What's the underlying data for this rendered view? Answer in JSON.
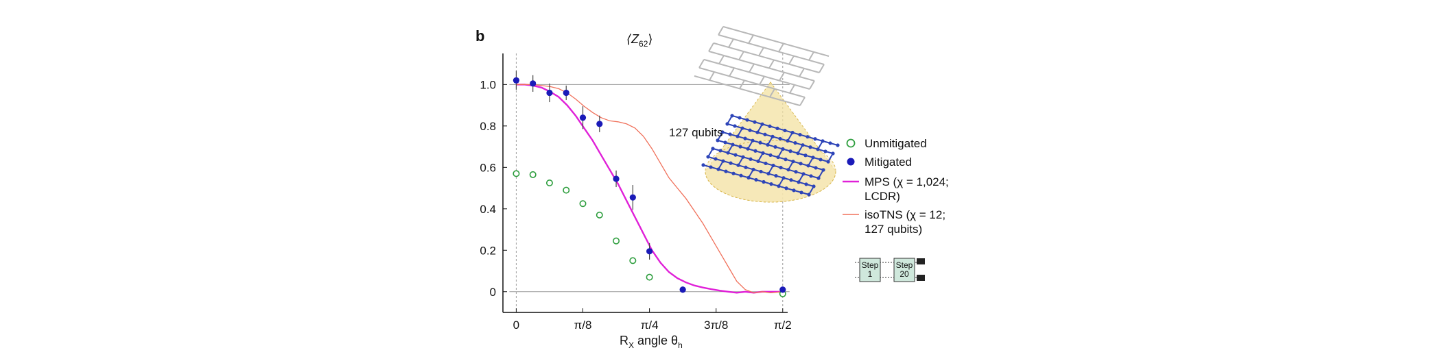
{
  "panel_label": "b",
  "colors": {
    "unmitigated": "#2e9e3e",
    "mitigated": "#1a1ab8",
    "mps": "#e020d8",
    "isotns": "#f0705a",
    "grid": "#9a9a9a",
    "lattice_top": "#b8b8b8",
    "lattice_bottom": "#2d44b8",
    "cone": "#f3e2a2",
    "step_box": "#cfe8dc"
  },
  "inset": {
    "label": "127 qubits"
  },
  "circuit_icon": {
    "step_first": "Step\n1",
    "step_first_line1": "Step",
    "step_first_line2": "1",
    "step_last_line1": "Step",
    "step_last_line2": "20"
  },
  "chart_data": {
    "type": "scatter",
    "title_main": "⟨Z",
    "title_sub": "62",
    "title_close": "⟩",
    "xlabel_main": "R",
    "xlabel_sub": "X",
    "xlabel_mid": " angle θ",
    "xlabel_sub2": "h",
    "ylabel": "",
    "xlim": [
      -0.0785,
      1.6
    ],
    "ylim": [
      -0.1,
      1.15
    ],
    "grid": false,
    "reference_lines_y": [
      0,
      1
    ],
    "reference_lines_x": [
      0,
      1.5708
    ],
    "xticks": [
      {
        "value": 0,
        "label": "0"
      },
      {
        "value": 0.3927,
        "label": "π/8"
      },
      {
        "value": 0.7854,
        "label": "π/4"
      },
      {
        "value": 1.1781,
        "label": "3π/8"
      },
      {
        "value": 1.5708,
        "label": "π/2"
      }
    ],
    "yticks": [
      {
        "value": 0,
        "label": "0"
      },
      {
        "value": 0.2,
        "label": "0.2"
      },
      {
        "value": 0.4,
        "label": "0.4"
      },
      {
        "value": 0.6,
        "label": "0.6"
      },
      {
        "value": 0.8,
        "label": "0.8"
      },
      {
        "value": 1.0,
        "label": "1.0"
      }
    ],
    "legend_position": "right",
    "series": [
      {
        "name": "Unmitigated",
        "kind": "open-circle",
        "x": [
          0,
          0.0982,
          0.1963,
          0.2945,
          0.3927,
          0.4909,
          0.589,
          0.6872,
          0.7854,
          1.5708
        ],
        "y": [
          0.57,
          0.565,
          0.525,
          0.49,
          0.425,
          0.37,
          0.245,
          0.15,
          0.07,
          -0.01
        ]
      },
      {
        "name": "Mitigated",
        "kind": "filled-circle",
        "x": [
          0,
          0.0982,
          0.1963,
          0.2945,
          0.3927,
          0.4909,
          0.589,
          0.6872,
          0.7854,
          0.9817,
          1.5708
        ],
        "y": [
          1.02,
          1.005,
          0.96,
          0.96,
          0.84,
          0.81,
          0.545,
          0.455,
          0.195,
          0.01,
          0.01
        ],
        "err": [
          0.045,
          0.04,
          0.045,
          0.035,
          0.055,
          0.04,
          0.04,
          0.06,
          0.04,
          0.015,
          0.015
        ]
      },
      {
        "name": "MPS (χ = 1,024;\nLCDR)",
        "legend_line1": "MPS (χ = 1,024;",
        "legend_line2": "LCDR)",
        "kind": "line",
        "x": [
          0,
          0.05,
          0.1,
          0.15,
          0.2,
          0.25,
          0.3,
          0.35,
          0.4,
          0.45,
          0.5,
          0.55,
          0.6,
          0.65,
          0.7,
          0.75,
          0.8,
          0.85,
          0.9,
          0.95,
          1.0,
          1.05,
          1.1,
          1.15,
          1.2,
          1.25,
          1.3,
          1.35,
          1.4,
          1.45,
          1.5,
          1.5708
        ],
        "y": [
          1.0,
          1.0,
          0.995,
          0.985,
          0.965,
          0.94,
          0.9,
          0.85,
          0.79,
          0.73,
          0.66,
          0.59,
          0.52,
          0.44,
          0.36,
          0.28,
          0.2,
          0.14,
          0.095,
          0.065,
          0.045,
          0.03,
          0.02,
          0.012,
          0.005,
          0.0,
          -0.005,
          0.0,
          -0.005,
          0.0,
          0.0,
          0.0
        ]
      },
      {
        "name": "isoTNS (χ = 12;\n127 qubits)",
        "legend_line1": "isoTNS (χ = 12;",
        "legend_line2": "127 qubits)",
        "kind": "line",
        "x": [
          0,
          0.05,
          0.1,
          0.15,
          0.2,
          0.25,
          0.3,
          0.35,
          0.4,
          0.45,
          0.5,
          0.55,
          0.6,
          0.65,
          0.7,
          0.75,
          0.8,
          0.85,
          0.9,
          0.95,
          1.0,
          1.05,
          1.1,
          1.15,
          1.2,
          1.25,
          1.3,
          1.35,
          1.4,
          1.45,
          1.5,
          1.5708
        ],
        "y": [
          1.0,
          1.0,
          1.0,
          0.995,
          0.99,
          0.98,
          0.96,
          0.93,
          0.895,
          0.865,
          0.84,
          0.825,
          0.82,
          0.81,
          0.79,
          0.75,
          0.69,
          0.62,
          0.55,
          0.5,
          0.45,
          0.39,
          0.33,
          0.26,
          0.19,
          0.12,
          0.05,
          0.01,
          -0.005,
          0.0,
          -0.005,
          0.0
        ]
      }
    ]
  }
}
